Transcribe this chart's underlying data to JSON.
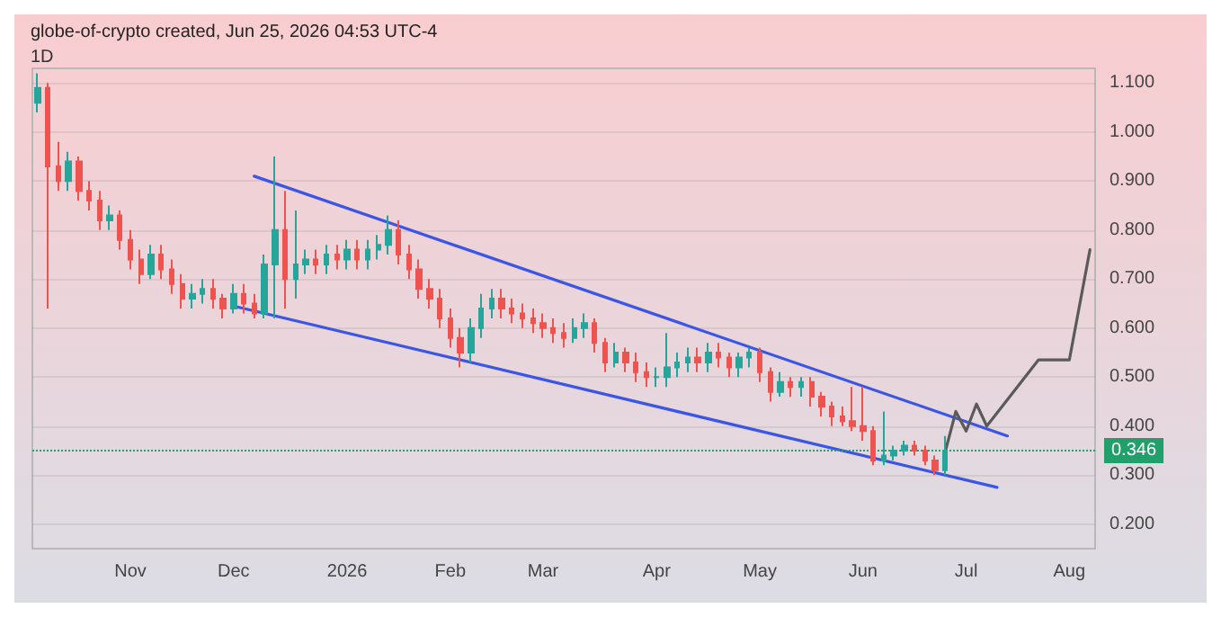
{
  "chart_data": {
    "type": "candlestick",
    "title": "globe-of-crypto created, Jun 25, 2026 04:53 UTC-4",
    "subtitle": "1D",
    "categories": [
      null,
      null,
      null,
      null,
      null,
      null,
      null,
      null,
      null,
      "Nov",
      null,
      null,
      null,
      null,
      null,
      null,
      null,
      null,
      null,
      "Dec",
      null,
      null,
      null,
      null,
      null,
      null,
      null,
      null,
      null,
      null,
      "2026",
      null,
      null,
      null,
      null,
      null,
      null,
      null,
      null,
      null,
      "Feb",
      null,
      null,
      null,
      null,
      null,
      null,
      null,
      null,
      "Mar",
      null,
      null,
      null,
      null,
      null,
      null,
      null,
      null,
      null,
      null,
      "Apr",
      null,
      null,
      null,
      null,
      null,
      null,
      null,
      null,
      null,
      "May",
      null,
      null,
      null,
      null,
      null,
      null,
      null,
      null,
      null,
      "Jun",
      null,
      null,
      null,
      null,
      null,
      null,
      null,
      null,
      null,
      "Jul",
      null,
      null,
      null,
      null,
      null,
      null,
      null,
      null,
      null,
      "Aug",
      null,
      null
    ],
    "ohlc": [
      [
        1.06,
        1.12,
        1.04,
        1.09
      ],
      [
        1.09,
        1.1,
        0.64,
        0.93
      ],
      [
        0.93,
        0.98,
        0.88,
        0.9
      ],
      [
        0.9,
        0.96,
        0.88,
        0.94
      ],
      [
        0.94,
        0.95,
        0.86,
        0.88
      ],
      [
        0.88,
        0.9,
        0.84,
        0.86
      ],
      [
        0.86,
        0.88,
        0.8,
        0.82
      ],
      [
        0.82,
        0.85,
        0.8,
        0.83
      ],
      [
        0.83,
        0.84,
        0.76,
        0.78
      ],
      [
        0.78,
        0.8,
        0.72,
        0.74
      ],
      [
        0.74,
        0.76,
        0.69,
        0.71
      ],
      [
        0.71,
        0.77,
        0.7,
        0.75
      ],
      [
        0.75,
        0.77,
        0.7,
        0.72
      ],
      [
        0.72,
        0.74,
        0.67,
        0.69
      ],
      [
        0.69,
        0.71,
        0.64,
        0.66
      ],
      [
        0.66,
        0.69,
        0.64,
        0.67
      ],
      [
        0.67,
        0.7,
        0.65,
        0.68
      ],
      [
        0.68,
        0.7,
        0.64,
        0.66
      ],
      [
        0.66,
        0.67,
        0.62,
        0.64
      ],
      [
        0.64,
        0.69,
        0.63,
        0.67
      ],
      [
        0.67,
        0.69,
        0.63,
        0.65
      ],
      [
        0.65,
        0.67,
        0.62,
        0.63
      ],
      [
        0.63,
        0.75,
        0.62,
        0.73
      ],
      [
        0.73,
        0.95,
        0.62,
        0.8
      ],
      [
        0.8,
        0.88,
        0.64,
        0.7
      ],
      [
        0.7,
        0.84,
        0.66,
        0.73
      ],
      [
        0.73,
        0.76,
        0.71,
        0.74
      ],
      [
        0.74,
        0.76,
        0.71,
        0.73
      ],
      [
        0.73,
        0.77,
        0.71,
        0.75
      ],
      [
        0.75,
        0.77,
        0.72,
        0.74
      ],
      [
        0.74,
        0.78,
        0.72,
        0.76
      ],
      [
        0.76,
        0.78,
        0.72,
        0.74
      ],
      [
        0.74,
        0.78,
        0.72,
        0.76
      ],
      [
        0.76,
        0.79,
        0.74,
        0.77
      ],
      [
        0.77,
        0.83,
        0.75,
        0.8
      ],
      [
        0.8,
        0.82,
        0.73,
        0.75
      ],
      [
        0.75,
        0.77,
        0.7,
        0.72
      ],
      [
        0.72,
        0.74,
        0.66,
        0.68
      ],
      [
        0.68,
        0.7,
        0.64,
        0.66
      ],
      [
        0.66,
        0.68,
        0.6,
        0.62
      ],
      [
        0.62,
        0.64,
        0.56,
        0.58
      ],
      [
        0.58,
        0.6,
        0.52,
        0.55
      ],
      [
        0.55,
        0.62,
        0.53,
        0.6
      ],
      [
        0.6,
        0.67,
        0.58,
        0.64
      ],
      [
        0.64,
        0.68,
        0.62,
        0.66
      ],
      [
        0.66,
        0.68,
        0.62,
        0.64
      ],
      [
        0.64,
        0.66,
        0.61,
        0.63
      ],
      [
        0.63,
        0.65,
        0.6,
        0.62
      ],
      [
        0.62,
        0.64,
        0.59,
        0.61
      ],
      [
        0.61,
        0.63,
        0.58,
        0.6
      ],
      [
        0.6,
        0.62,
        0.57,
        0.59
      ],
      [
        0.59,
        0.61,
        0.56,
        0.58
      ],
      [
        0.58,
        0.62,
        0.57,
        0.6
      ],
      [
        0.6,
        0.63,
        0.58,
        0.61
      ],
      [
        0.61,
        0.62,
        0.55,
        0.57
      ],
      [
        0.57,
        0.58,
        0.51,
        0.53
      ],
      [
        0.53,
        0.57,
        0.52,
        0.55
      ],
      [
        0.55,
        0.56,
        0.51,
        0.53
      ],
      [
        0.53,
        0.55,
        0.49,
        0.51
      ],
      [
        0.51,
        0.53,
        0.48,
        0.5
      ],
      [
        0.5,
        0.52,
        0.48,
        0.5
      ],
      [
        0.5,
        0.59,
        0.48,
        0.52
      ],
      [
        0.52,
        0.55,
        0.5,
        0.53
      ],
      [
        0.53,
        0.56,
        0.51,
        0.54
      ],
      [
        0.54,
        0.56,
        0.51,
        0.53
      ],
      [
        0.53,
        0.57,
        0.51,
        0.55
      ],
      [
        0.55,
        0.57,
        0.52,
        0.54
      ],
      [
        0.54,
        0.55,
        0.5,
        0.52
      ],
      [
        0.52,
        0.55,
        0.5,
        0.54
      ],
      [
        0.54,
        0.56,
        0.52,
        0.55
      ],
      [
        0.55,
        0.56,
        0.49,
        0.51
      ],
      [
        0.51,
        0.52,
        0.45,
        0.47
      ],
      [
        0.47,
        0.51,
        0.46,
        0.49
      ],
      [
        0.49,
        0.5,
        0.46,
        0.48
      ],
      [
        0.48,
        0.5,
        0.46,
        0.49
      ],
      [
        0.49,
        0.5,
        0.44,
        0.46
      ],
      [
        0.46,
        0.47,
        0.42,
        0.44
      ],
      [
        0.44,
        0.45,
        0.4,
        0.42
      ],
      [
        0.42,
        0.44,
        0.4,
        0.41
      ],
      [
        0.41,
        0.48,
        0.39,
        0.4
      ],
      [
        0.4,
        0.48,
        0.37,
        0.39
      ],
      [
        0.39,
        0.4,
        0.32,
        0.33
      ],
      [
        0.33,
        0.43,
        0.32,
        0.34
      ],
      [
        0.34,
        0.36,
        0.33,
        0.35
      ],
      [
        0.35,
        0.37,
        0.34,
        0.36
      ],
      [
        0.36,
        0.37,
        0.34,
        0.35
      ],
      [
        0.35,
        0.36,
        0.32,
        0.33
      ],
      [
        0.33,
        0.34,
        0.3,
        0.31
      ],
      [
        0.31,
        0.38,
        0.3,
        0.35
      ],
      null,
      null,
      null,
      null,
      null,
      null,
      null,
      null,
      null,
      null,
      null,
      null,
      null,
      null
    ],
    "series": [
      {
        "type": "line",
        "color": "#3b55e6",
        "values": [
          null,
          null,
          null,
          null,
          null,
          null,
          null,
          null,
          null,
          null,
          null,
          null,
          null,
          null,
          null,
          null,
          null,
          null,
          null,
          null,
          null,
          0.91,
          null,
          null,
          null,
          null,
          null,
          null,
          null,
          null,
          null,
          null,
          null,
          null,
          null,
          null,
          null,
          null,
          null,
          null,
          null,
          null,
          null,
          null,
          null,
          null,
          null,
          null,
          null,
          null,
          null,
          null,
          null,
          null,
          null,
          null,
          null,
          null,
          null,
          null,
          null,
          null,
          null,
          null,
          null,
          null,
          null,
          null,
          null,
          null,
          null,
          null,
          null,
          null,
          null,
          null,
          null,
          null,
          null,
          null,
          null,
          null,
          null,
          null,
          null,
          null,
          null,
          null,
          null,
          null,
          null,
          null,
          null,
          null,
          0.38,
          null,
          null,
          null,
          null,
          null,
          null,
          null,
          null
        ]
      },
      {
        "type": "line",
        "color": "#3b55e6",
        "values": [
          null,
          null,
          null,
          null,
          null,
          null,
          null,
          null,
          null,
          null,
          null,
          null,
          null,
          null,
          null,
          null,
          null,
          null,
          null,
          0.645,
          null,
          null,
          null,
          null,
          null,
          null,
          null,
          null,
          null,
          null,
          null,
          null,
          null,
          null,
          null,
          null,
          null,
          null,
          null,
          null,
          null,
          null,
          null,
          null,
          null,
          null,
          null,
          null,
          null,
          null,
          null,
          null,
          null,
          null,
          null,
          null,
          null,
          null,
          null,
          null,
          null,
          null,
          null,
          null,
          null,
          null,
          null,
          null,
          null,
          null,
          null,
          null,
          null,
          null,
          null,
          null,
          null,
          null,
          null,
          null,
          null,
          null,
          null,
          null,
          null,
          null,
          null,
          null,
          null,
          null,
          null,
          null,
          null,
          0.275,
          null,
          null,
          null,
          null,
          null,
          null,
          null,
          null,
          null
        ]
      },
      {
        "type": "line",
        "color": "#5a5a5a",
        "values": [
          null,
          null,
          null,
          null,
          null,
          null,
          null,
          null,
          null,
          null,
          null,
          null,
          null,
          null,
          null,
          null,
          null,
          null,
          null,
          null,
          null,
          null,
          null,
          null,
          null,
          null,
          null,
          null,
          null,
          null,
          null,
          null,
          null,
          null,
          null,
          null,
          null,
          null,
          null,
          null,
          null,
          null,
          null,
          null,
          null,
          null,
          null,
          null,
          null,
          null,
          null,
          null,
          null,
          null,
          null,
          null,
          null,
          null,
          null,
          null,
          null,
          null,
          null,
          null,
          null,
          null,
          null,
          null,
          null,
          null,
          null,
          null,
          null,
          null,
          null,
          null,
          null,
          null,
          null,
          null,
          null,
          null,
          null,
          null,
          null,
          null,
          null,
          null,
          0.35,
          0.43,
          0.39,
          0.445,
          0.4,
          null,
          null,
          null,
          null,
          0.535,
          null,
          null,
          0.535,
          null,
          0.76
        ]
      }
    ],
    "ref_lines": [
      {
        "axis": "y",
        "value": 0.346,
        "label": "0.346",
        "color": "#22a06b",
        "line_style": "dotted"
      }
    ],
    "ylim": [
      0.15,
      1.13
    ],
    "yticks": [
      {
        "value": 0.2,
        "label": "0.200"
      },
      {
        "value": 0.3,
        "label": "0.300"
      },
      {
        "value": 0.4,
        "label": "0.400"
      },
      {
        "value": 0.5,
        "label": "0.500"
      },
      {
        "value": 0.6,
        "label": "0.600"
      },
      {
        "value": 0.7,
        "label": "0.700"
      },
      {
        "value": 0.8,
        "label": "0.800"
      },
      {
        "value": 0.9,
        "label": "0.900"
      },
      {
        "value": 1.0,
        "label": "1.000"
      },
      {
        "value": 1.1,
        "label": "1.100"
      }
    ],
    "grid": "y"
  }
}
